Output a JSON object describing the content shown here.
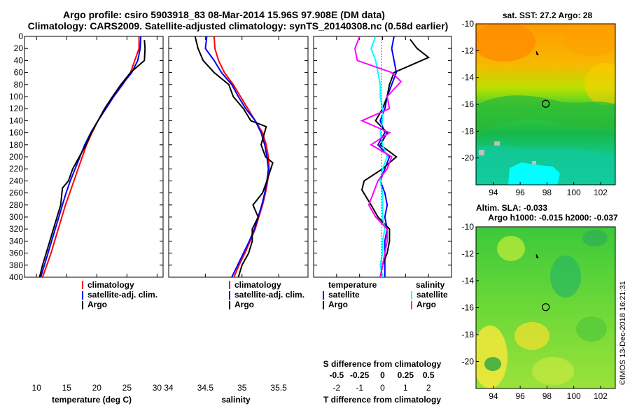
{
  "title": {
    "line1": "Argo profile: csiro 5903918_83 08-Mar-2014 15.96S 97.908E (DM data)",
    "line2": "Climatology: CARS2009. Satellite-adjusted climatology: synTS_20140308.nc (0.58d earlier)"
  },
  "colors": {
    "climatology": "#ff0000",
    "satellite": "#0000ff",
    "argo": "#000000",
    "argo_salinity_diff": "#ff00ff",
    "satellite_salinity_diff": "#00ffff"
  },
  "chart_data": [
    {
      "type": "line",
      "panel": "temperature",
      "xlabel": "temperature (deg C)",
      "ylabel": "",
      "xlim": [
        8,
        31
      ],
      "ylim": [
        400,
        0
      ],
      "xticks": [
        10,
        15,
        20,
        25,
        30
      ],
      "yticks": [
        0,
        20,
        40,
        60,
        80,
        100,
        120,
        140,
        160,
        180,
        200,
        220,
        240,
        260,
        280,
        300,
        320,
        340,
        360,
        380,
        400
      ],
      "legend": [
        "climatology",
        "satellite-adj. clim.",
        "Argo"
      ],
      "legend_position": "lower-right",
      "series": [
        {
          "name": "climatology",
          "color": "#ff0000",
          "x": [
            27.0,
            27.0,
            26.3,
            25.6,
            24.3,
            22.8,
            21.5,
            20.2,
            19.2,
            18.3,
            17.6,
            16.9,
            16.2,
            15.5,
            14.8,
            14.2,
            13.6,
            13.0,
            12.4,
            11.7,
            11.0
          ],
          "y": [
            0,
            20,
            40,
            60,
            80,
            100,
            120,
            140,
            160,
            180,
            200,
            220,
            240,
            260,
            280,
            300,
            320,
            340,
            360,
            380,
            400
          ]
        },
        {
          "name": "satellite-adj. clim.",
          "color": "#0000ff",
          "x": [
            27.3,
            27.2,
            26.8,
            25.8,
            24.2,
            22.8,
            21.5,
            20.2,
            19.0,
            18.0,
            17.2,
            16.4,
            15.6,
            14.9,
            14.3,
            13.7,
            13.1,
            12.5,
            11.9,
            11.3,
            10.7
          ],
          "y": [
            0,
            20,
            40,
            60,
            80,
            100,
            120,
            140,
            160,
            180,
            200,
            220,
            240,
            260,
            280,
            300,
            320,
            340,
            360,
            380,
            400
          ]
        },
        {
          "name": "Argo",
          "color": "#000000",
          "x": [
            27.9,
            28.0,
            27.9,
            25.6,
            24.0,
            22.6,
            21.3,
            20.2,
            19.1,
            18.2,
            17.1,
            16.0,
            15.3,
            14.3,
            14.0,
            13.4,
            12.8,
            12.2,
            11.6,
            11.0,
            10.5
          ],
          "y": [
            6,
            20,
            40,
            60,
            80,
            100,
            120,
            140,
            160,
            180,
            200,
            220,
            240,
            252,
            280,
            300,
            320,
            340,
            360,
            380,
            400
          ]
        }
      ]
    },
    {
      "type": "line",
      "panel": "salinity",
      "xlabel": "salinity",
      "ylabel": "",
      "xlim": [
        34,
        35.9
      ],
      "ylim": [
        400,
        0
      ],
      "xticks": [
        34,
        34.5,
        35,
        35.5
      ],
      "legend": [
        "climatology",
        "satellite-adj. clim.",
        "Argo"
      ],
      "legend_position": "lower-right",
      "series": [
        {
          "name": "climatology",
          "color": "#ff0000",
          "x": [
            34.62,
            34.63,
            34.68,
            34.76,
            34.88,
            34.98,
            35.08,
            35.18,
            35.28,
            35.33,
            35.36,
            35.37,
            35.35,
            35.32,
            35.28,
            35.23,
            35.18,
            35.11,
            35.04,
            34.96,
            34.89
          ],
          "y": [
            0,
            20,
            40,
            60,
            80,
            100,
            120,
            140,
            160,
            180,
            200,
            220,
            240,
            260,
            280,
            300,
            320,
            340,
            360,
            380,
            400
          ]
        },
        {
          "name": "satellite-adj. clim.",
          "color": "#0000ff",
          "x": [
            34.52,
            34.5,
            34.62,
            34.72,
            34.86,
            34.95,
            35.05,
            35.18,
            35.26,
            35.31,
            35.34,
            35.36,
            35.34,
            35.31,
            35.27,
            35.22,
            35.17,
            35.1,
            35.02,
            34.94,
            34.86
          ],
          "y": [
            0,
            20,
            40,
            60,
            80,
            100,
            120,
            140,
            160,
            180,
            200,
            220,
            240,
            260,
            280,
            300,
            320,
            340,
            360,
            380,
            400
          ]
        },
        {
          "name": "Argo",
          "color": "#000000",
          "x": [
            34.36,
            34.4,
            34.47,
            34.62,
            34.82,
            34.88,
            35.02,
            35.12,
            35.33,
            35.26,
            35.32,
            35.42,
            35.34,
            35.28,
            35.15,
            35.22,
            35.14,
            35.14,
            35.09,
            35.0,
            34.95
          ],
          "y": [
            0,
            20,
            40,
            60,
            80,
            100,
            120,
            140,
            150,
            180,
            200,
            210,
            240,
            260,
            280,
            300,
            320,
            340,
            360,
            380,
            400
          ]
        }
      ]
    },
    {
      "type": "line",
      "panel": "differences",
      "xlabel": "T difference from climatology",
      "xlabel_top": "S difference from climatology",
      "xlim": [
        -3,
        3
      ],
      "ylim": [
        400,
        0
      ],
      "xticks": [
        -2,
        -1,
        0,
        1,
        2
      ],
      "xtick_labels_s": [
        "-0.5",
        "-0.25",
        "0",
        "0.25",
        "0.5"
      ],
      "legend_left_title": "temperature",
      "legend_right_title": "salinity",
      "legend_left": [
        "satellite",
        "Argo"
      ],
      "legend_right": [
        "satellite",
        "Argo"
      ],
      "legend_position": "lower-center",
      "series": [
        {
          "name": "T satellite",
          "color": "#0000ff",
          "x": [
            0.5,
            0.4,
            0.5,
            0.6,
            0.4,
            0.2,
            0.1,
            -0.1,
            0.1,
            -0.2,
            0.3,
            0.1,
            -0.1,
            0.1,
            0.2,
            0.1,
            0.2,
            0.1,
            0.1,
            0.1,
            0.1
          ],
          "y": [
            0,
            20,
            40,
            60,
            80,
            100,
            120,
            140,
            160,
            180,
            200,
            220,
            240,
            260,
            280,
            300,
            320,
            340,
            360,
            380,
            400
          ]
        },
        {
          "name": "T Argo",
          "color": "#000000",
          "x": [
            1.2,
            1.5,
            2.0,
            0.5,
            0.3,
            0.2,
            0.0,
            -0.3,
            0.2,
            -0.1,
            0.6,
            0.0,
            -0.8,
            -0.9,
            -0.5,
            -0.2,
            0.3,
            0.3,
            0.2,
            0.0,
            -0.1
          ],
          "y": [
            5,
            20,
            35,
            60,
            80,
            100,
            120,
            140,
            160,
            180,
            200,
            220,
            240,
            255,
            280,
            300,
            320,
            340,
            360,
            380,
            400
          ]
        },
        {
          "name": "S satellite",
          "color": "#00ffff",
          "x": [
            -0.3,
            -0.5,
            -0.3,
            -0.2,
            -0.1,
            -0.1,
            0.0,
            0.0,
            -0.1,
            0.0,
            0.2,
            0.0,
            -0.1,
            0.0,
            0.0,
            0.0,
            0.1,
            0.0,
            0.0,
            -0.1,
            0.0
          ],
          "y": [
            0,
            20,
            40,
            60,
            80,
            100,
            120,
            140,
            160,
            180,
            200,
            220,
            240,
            260,
            280,
            300,
            320,
            340,
            360,
            380,
            400
          ]
        },
        {
          "name": "S Argo",
          "color": "#ff00ff",
          "x": [
            -1.0,
            -1.2,
            -1.1,
            0.4,
            0.8,
            0.2,
            0.3,
            -0.9,
            0.3,
            -0.5,
            0.4,
            0.2,
            -0.2,
            -0.4,
            -0.6,
            -0.3,
            0.2,
            0.2,
            0.1,
            0.0,
            -0.1
          ],
          "y": [
            0,
            20,
            40,
            60,
            75,
            100,
            120,
            140,
            160,
            180,
            200,
            220,
            240,
            260,
            280,
            300,
            320,
            340,
            360,
            380,
            400
          ]
        }
      ]
    },
    {
      "type": "heatmap",
      "panel": "sst_map",
      "title": "sat. SST: 27.2 Argo: 28",
      "xticks": [
        94,
        96,
        98,
        100,
        102
      ],
      "yticks": [
        -10,
        -12,
        -14,
        -16,
        -18,
        -20
      ],
      "xlim": [
        92.7,
        103.1
      ],
      "ylim": [
        -22,
        -10
      ],
      "argo_position": {
        "lon": 97.908,
        "lat": -15.96
      },
      "previous_position": {
        "lon": 97.3,
        "lat": -12.2
      }
    },
    {
      "type": "heatmap",
      "panel": "sla_map",
      "title_line1": "Altim. SLA: -0.033",
      "title_line2": "Argo h1000: -0.015 h2000: -0.037",
      "xticks": [
        94,
        96,
        98,
        100,
        102
      ],
      "yticks": [
        -10,
        -12,
        -14,
        -16,
        -18,
        -20
      ],
      "xlim": [
        92.7,
        103.1
      ],
      "ylim": [
        -22,
        -10
      ],
      "argo_position": {
        "lon": 97.908,
        "lat": -15.96
      },
      "previous_position": {
        "lon": 97.3,
        "lat": -12.2
      }
    }
  ],
  "stamp": "©IMOS 13-Dec-2018 16:21:31"
}
